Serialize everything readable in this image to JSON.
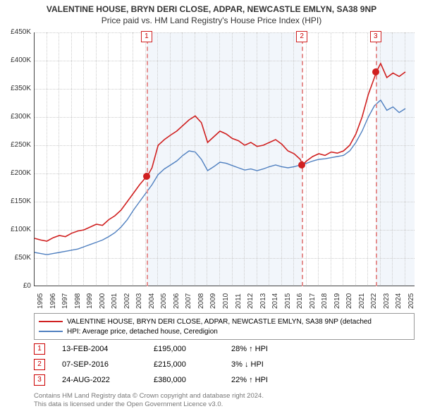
{
  "title": {
    "main": "VALENTINE HOUSE, BRYN DERI CLOSE, ADPAR, NEWCASTLE EMLYN, SA38 9NP",
    "sub": "Price paid vs. HM Land Registry's House Price Index (HPI)",
    "fontsize_main": 12,
    "fontsize_sub": 12
  },
  "chart": {
    "type": "line",
    "background_color": "#ffffff",
    "grid_color": "#cccccc",
    "axis_color": "#444444",
    "x": {
      "min": 1995,
      "max": 2025.8,
      "ticks": [
        1995,
        1996,
        1997,
        1998,
        1999,
        2000,
        2001,
        2002,
        2003,
        2004,
        2005,
        2006,
        2007,
        2008,
        2009,
        2010,
        2011,
        2012,
        2013,
        2014,
        2015,
        2016,
        2017,
        2018,
        2019,
        2020,
        2021,
        2022,
        2023,
        2024,
        2025
      ],
      "label_fontsize": 10
    },
    "y": {
      "min": 0,
      "max": 450000,
      "ticks": [
        0,
        50000,
        100000,
        150000,
        200000,
        250000,
        300000,
        350000,
        400000,
        450000
      ],
      "tick_labels": [
        "£0",
        "£50K",
        "£100K",
        "£150K",
        "£200K",
        "£250K",
        "£300K",
        "£350K",
        "£400K",
        "£450K"
      ],
      "label_fontsize": 10
    },
    "shaded_ranges": [
      {
        "x0": 2004.12,
        "x1": 2016.68,
        "color": "#e8eef7"
      },
      {
        "x0": 2022.65,
        "x1": 2025.8,
        "color": "#e8eef7"
      }
    ],
    "series": [
      {
        "name": "property",
        "color": "#d02020",
        "width": 1.6,
        "points": [
          [
            1995,
            85000
          ],
          [
            1995.5,
            82000
          ],
          [
            1996,
            80000
          ],
          [
            1996.5,
            86000
          ],
          [
            1997,
            90000
          ],
          [
            1997.5,
            88000
          ],
          [
            1998,
            94000
          ],
          [
            1998.5,
            98000
          ],
          [
            1999,
            100000
          ],
          [
            1999.5,
            105000
          ],
          [
            2000,
            110000
          ],
          [
            2000.5,
            108000
          ],
          [
            2001,
            118000
          ],
          [
            2001.5,
            125000
          ],
          [
            2002,
            135000
          ],
          [
            2002.5,
            150000
          ],
          [
            2003,
            165000
          ],
          [
            2003.5,
            180000
          ],
          [
            2004,
            193000
          ],
          [
            2004.12,
            195000
          ],
          [
            2004.5,
            210000
          ],
          [
            2005,
            250000
          ],
          [
            2005.5,
            260000
          ],
          [
            2006,
            268000
          ],
          [
            2006.5,
            275000
          ],
          [
            2007,
            285000
          ],
          [
            2007.5,
            295000
          ],
          [
            2008,
            302000
          ],
          [
            2008.5,
            290000
          ],
          [
            2009,
            255000
          ],
          [
            2009.5,
            265000
          ],
          [
            2010,
            275000
          ],
          [
            2010.5,
            270000
          ],
          [
            2011,
            262000
          ],
          [
            2011.5,
            258000
          ],
          [
            2012,
            250000
          ],
          [
            2012.5,
            255000
          ],
          [
            2013,
            248000
          ],
          [
            2013.5,
            250000
          ],
          [
            2014,
            255000
          ],
          [
            2014.5,
            260000
          ],
          [
            2015,
            252000
          ],
          [
            2015.5,
            240000
          ],
          [
            2016,
            235000
          ],
          [
            2016.5,
            225000
          ],
          [
            2016.68,
            215000
          ],
          [
            2017,
            222000
          ],
          [
            2017.5,
            230000
          ],
          [
            2018,
            235000
          ],
          [
            2018.5,
            232000
          ],
          [
            2019,
            238000
          ],
          [
            2019.5,
            236000
          ],
          [
            2020,
            240000
          ],
          [
            2020.5,
            250000
          ],
          [
            2021,
            270000
          ],
          [
            2021.5,
            300000
          ],
          [
            2022,
            340000
          ],
          [
            2022.5,
            370000
          ],
          [
            2022.65,
            380000
          ],
          [
            2023,
            395000
          ],
          [
            2023.5,
            370000
          ],
          [
            2024,
            378000
          ],
          [
            2024.5,
            372000
          ],
          [
            2025,
            380000
          ]
        ]
      },
      {
        "name": "hpi",
        "color": "#5080c0",
        "width": 1.4,
        "points": [
          [
            1995,
            60000
          ],
          [
            1995.5,
            58000
          ],
          [
            1996,
            56000
          ],
          [
            1996.5,
            58000
          ],
          [
            1997,
            60000
          ],
          [
            1997.5,
            62000
          ],
          [
            1998,
            64000
          ],
          [
            1998.5,
            66000
          ],
          [
            1999,
            70000
          ],
          [
            1999.5,
            74000
          ],
          [
            2000,
            78000
          ],
          [
            2000.5,
            82000
          ],
          [
            2001,
            88000
          ],
          [
            2001.5,
            95000
          ],
          [
            2002,
            105000
          ],
          [
            2002.5,
            118000
          ],
          [
            2003,
            135000
          ],
          [
            2003.5,
            150000
          ],
          [
            2004,
            165000
          ],
          [
            2004.5,
            180000
          ],
          [
            2005,
            198000
          ],
          [
            2005.5,
            208000
          ],
          [
            2006,
            215000
          ],
          [
            2006.5,
            222000
          ],
          [
            2007,
            232000
          ],
          [
            2007.5,
            240000
          ],
          [
            2008,
            238000
          ],
          [
            2008.5,
            225000
          ],
          [
            2009,
            205000
          ],
          [
            2009.5,
            212000
          ],
          [
            2010,
            220000
          ],
          [
            2010.5,
            218000
          ],
          [
            2011,
            214000
          ],
          [
            2011.5,
            210000
          ],
          [
            2012,
            206000
          ],
          [
            2012.5,
            208000
          ],
          [
            2013,
            205000
          ],
          [
            2013.5,
            208000
          ],
          [
            2014,
            212000
          ],
          [
            2014.5,
            215000
          ],
          [
            2015,
            212000
          ],
          [
            2015.5,
            210000
          ],
          [
            2016,
            212000
          ],
          [
            2016.5,
            215000
          ],
          [
            2017,
            218000
          ],
          [
            2017.5,
            222000
          ],
          [
            2018,
            225000
          ],
          [
            2018.5,
            226000
          ],
          [
            2019,
            228000
          ],
          [
            2019.5,
            230000
          ],
          [
            2020,
            232000
          ],
          [
            2020.5,
            240000
          ],
          [
            2021,
            255000
          ],
          [
            2021.5,
            275000
          ],
          [
            2022,
            300000
          ],
          [
            2022.5,
            320000
          ],
          [
            2023,
            330000
          ],
          [
            2023.5,
            312000
          ],
          [
            2024,
            318000
          ],
          [
            2024.5,
            308000
          ],
          [
            2025,
            315000
          ]
        ]
      }
    ],
    "markers": [
      {
        "idx": "1",
        "x": 2004.12,
        "y": 195000,
        "color": "#d02020",
        "line_color": "#e59090"
      },
      {
        "idx": "2",
        "x": 2016.68,
        "y": 215000,
        "color": "#d02020",
        "line_color": "#e59090"
      },
      {
        "idx": "3",
        "x": 2022.65,
        "y": 380000,
        "color": "#d02020",
        "line_color": "#e59090"
      }
    ]
  },
  "legend": {
    "items": [
      {
        "label": "VALENTINE HOUSE, BRYN DERI CLOSE, ADPAR, NEWCASTLE EMLYN, SA38 9NP (detached",
        "color": "#d02020"
      },
      {
        "label": "HPI: Average price, detached house, Ceredigion",
        "color": "#5080c0"
      }
    ]
  },
  "sales": [
    {
      "idx": "1",
      "date": "13-FEB-2004",
      "price": "£195,000",
      "delta": "28% ↑ HPI"
    },
    {
      "idx": "2",
      "date": "07-SEP-2016",
      "price": "£215,000",
      "delta": "3% ↓ HPI"
    },
    {
      "idx": "3",
      "date": "24-AUG-2022",
      "price": "£380,000",
      "delta": "22% ↑ HPI"
    }
  ],
  "footer": {
    "line1": "Contains HM Land Registry data © Crown copyright and database right 2024.",
    "line2": "This data is licensed under the Open Government Licence v3.0."
  }
}
